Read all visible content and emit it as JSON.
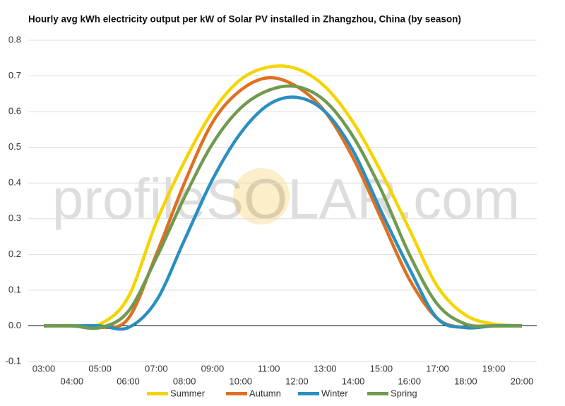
{
  "chart_data": {
    "type": "line",
    "title": "Hourly avg kWh electricity output per kW of Solar PV installed in Zhangzhou, China (by season)",
    "watermark": "profileSOLAR.com",
    "categories": [
      "03:00",
      "04:00",
      "05:00",
      "06:00",
      "07:00",
      "08:00",
      "09:00",
      "10:00",
      "11:00",
      "12:00",
      "13:00",
      "14:00",
      "15:00",
      "16:00",
      "17:00",
      "18:00",
      "19:00",
      "20:00"
    ],
    "series": [
      {
        "name": "Summer",
        "color": "#f5d400",
        "values": [
          0,
          0,
          0.005,
          0.08,
          0.29,
          0.46,
          0.6,
          0.69,
          0.725,
          0.72,
          0.67,
          0.57,
          0.43,
          0.27,
          0.11,
          0.03,
          0.005,
          0
        ]
      },
      {
        "name": "Autumn",
        "color": "#e07020",
        "values": [
          0,
          0,
          -0.005,
          0.02,
          0.2,
          0.4,
          0.57,
          0.66,
          0.695,
          0.67,
          0.6,
          0.47,
          0.3,
          0.13,
          0.02,
          -0.005,
          0,
          0
        ]
      },
      {
        "name": "Winter",
        "color": "#2a8fc0",
        "values": [
          0,
          0,
          0,
          -0.005,
          0.07,
          0.24,
          0.41,
          0.54,
          0.62,
          0.64,
          0.6,
          0.49,
          0.32,
          0.16,
          0.02,
          -0.005,
          0,
          0
        ]
      },
      {
        "name": "Spring",
        "color": "#6f9a4f",
        "values": [
          0,
          0,
          -0.005,
          0.04,
          0.19,
          0.36,
          0.51,
          0.61,
          0.66,
          0.67,
          0.63,
          0.53,
          0.38,
          0.2,
          0.06,
          0.005,
          0,
          0
        ]
      }
    ],
    "ylim": [
      -0.1,
      0.8
    ],
    "yticks": [
      -0.1,
      {
        "value": 0,
        "label": "0.0"
      },
      0.1,
      0.2,
      0.3,
      0.4,
      0.5,
      0.6,
      0.7,
      0.8
    ],
    "grid": true,
    "legend": "bottom"
  }
}
